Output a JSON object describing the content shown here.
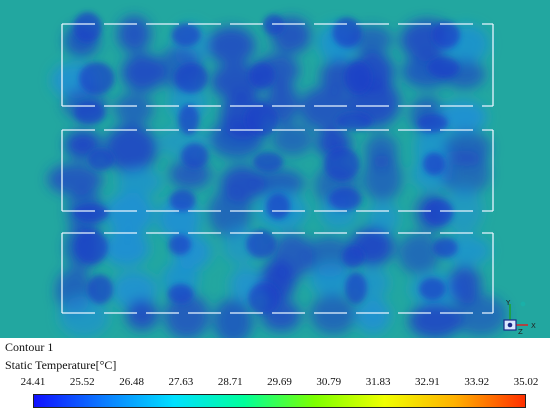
{
  "contour": {
    "title": "Contour 1",
    "variable": "Static Temperature[°C]",
    "colors": {
      "background": "#22a7a0",
      "cold": "#1f3fc7",
      "mid": "#1d8fd6",
      "outline": "#e8f4ff"
    },
    "colorbar_stops": [
      "#1010ff",
      "#0b7cff",
      "#00e0ff",
      "#00ff9a",
      "#7cff00",
      "#f0ff00",
      "#ffb000",
      "#ff3000"
    ],
    "legend": {
      "ticks": [
        "24.41",
        "25.52",
        "26.48",
        "27.63",
        "28.71",
        "29.69",
        "30.79",
        "31.83",
        "32.91",
        "33.92",
        "35.02"
      ]
    },
    "axis_triad": {
      "y_label": "Y",
      "z_label": "Z",
      "x_label": "X"
    }
  }
}
